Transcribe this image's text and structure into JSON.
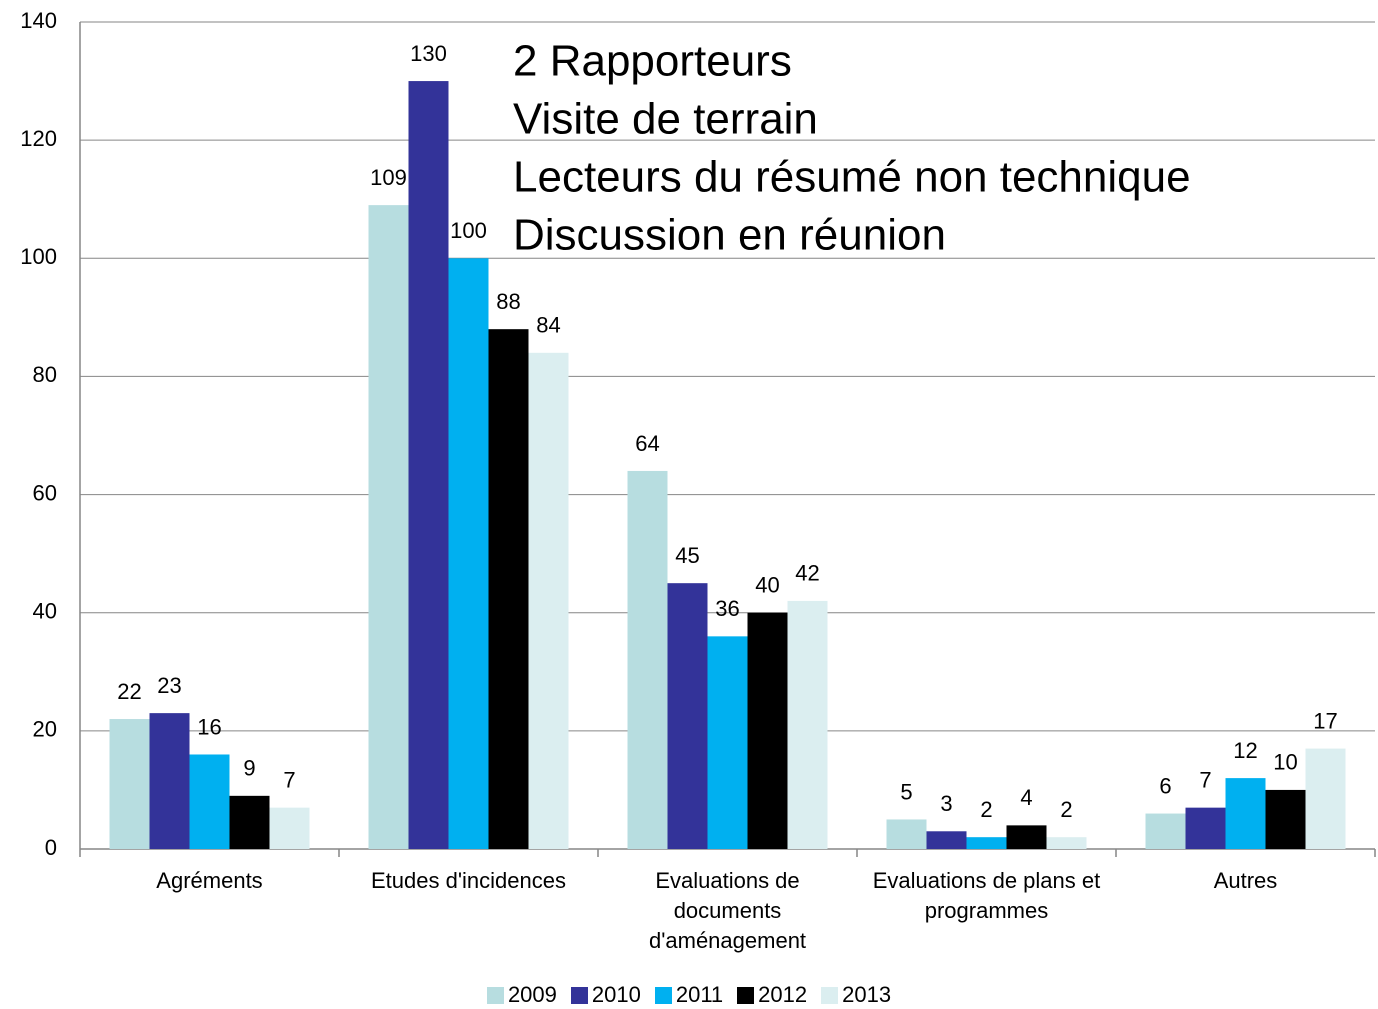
{
  "chart_data": {
    "type": "bar",
    "categories": [
      "Agréments",
      "Etudes d'incidences",
      "Evaluations de documents d'aménagement",
      "Evaluations de plans et programmes",
      "Autres"
    ],
    "series": [
      {
        "name": "2009",
        "color": "#b7dde0",
        "values": [
          22,
          109,
          64,
          5,
          6
        ]
      },
      {
        "name": "2010",
        "color": "#333399",
        "values": [
          23,
          130,
          45,
          3,
          7
        ]
      },
      {
        "name": "2011",
        "color": "#00b0f0",
        "values": [
          16,
          100,
          36,
          2,
          12
        ]
      },
      {
        "name": "2012",
        "color": "#000000",
        "values": [
          9,
          88,
          40,
          4,
          10
        ]
      },
      {
        "name": "2013",
        "color": "#dbeef0",
        "values": [
          7,
          84,
          42,
          2,
          17
        ]
      }
    ],
    "ylim": [
      0,
      140
    ],
    "yticks": [
      0,
      20,
      40,
      60,
      80,
      100,
      120,
      140
    ],
    "grid": true,
    "annotations": [
      "2 Rapporteurs",
      "Visite de terrain",
      "Lecteurs du résumé non technique",
      "Discussion en réunion"
    ],
    "legend": "bottom"
  }
}
